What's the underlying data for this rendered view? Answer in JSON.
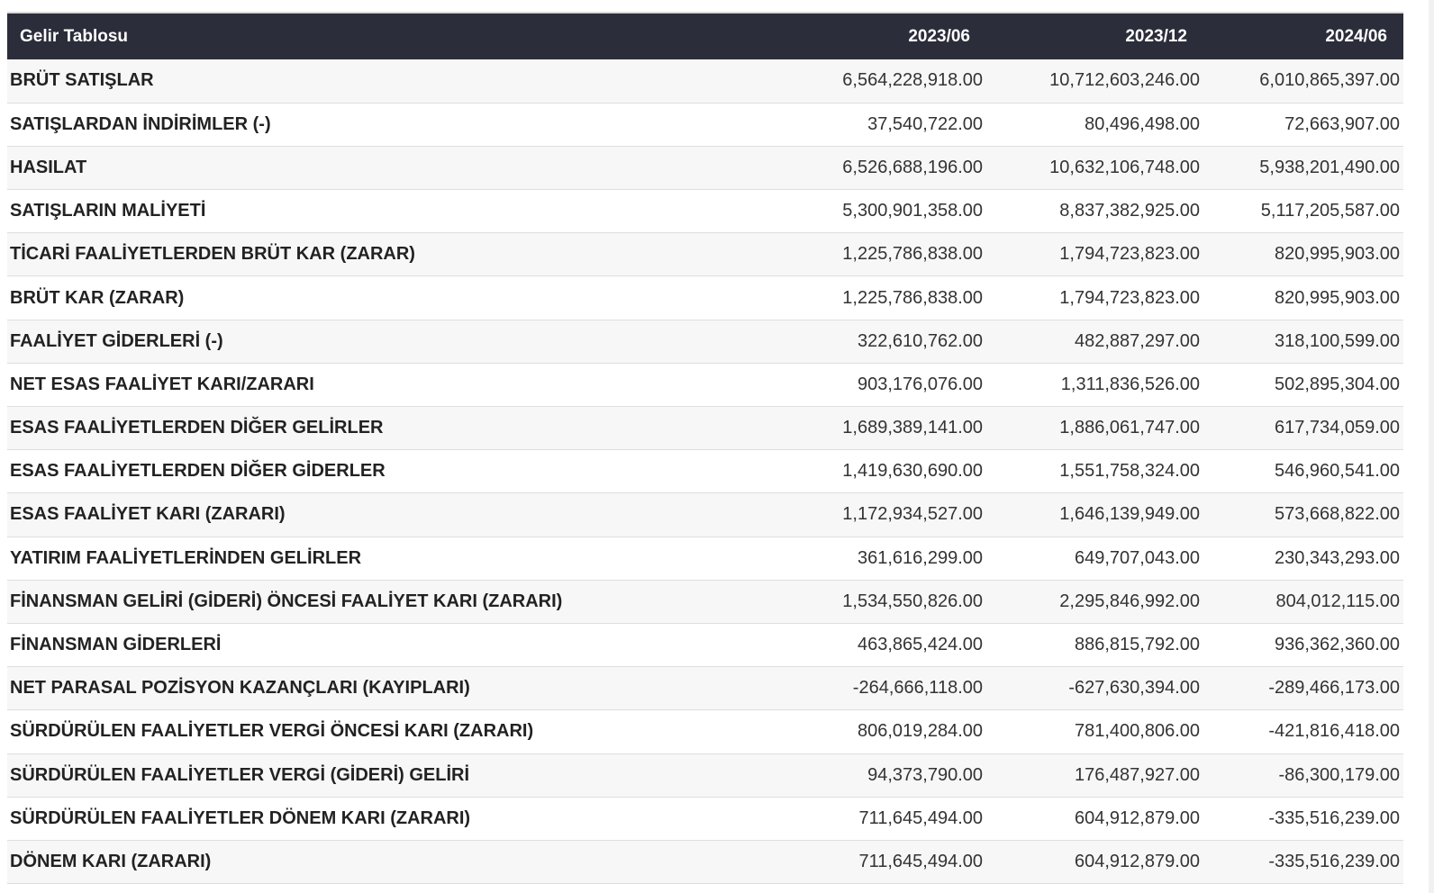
{
  "table": {
    "headers": {
      "title": "Gelir Tablosu",
      "periods": [
        "2023/06",
        "2023/12",
        "2024/06"
      ]
    },
    "rows": [
      {
        "label": "BRÜT SATIŞLAR",
        "values": [
          "6,564,228,918.00",
          "10,712,603,246.00",
          "6,010,865,397.00"
        ]
      },
      {
        "label": "SATIŞLARDAN İNDİRİMLER (-)",
        "values": [
          "37,540,722.00",
          "80,496,498.00",
          "72,663,907.00"
        ]
      },
      {
        "label": "HASILAT",
        "values": [
          "6,526,688,196.00",
          "10,632,106,748.00",
          "5,938,201,490.00"
        ]
      },
      {
        "label": "SATIŞLARIN MALİYETİ",
        "values": [
          "5,300,901,358.00",
          "8,837,382,925.00",
          "5,117,205,587.00"
        ]
      },
      {
        "label": "TİCARİ FAALİYETLERDEN BRÜT KAR (ZARAR)",
        "values": [
          "1,225,786,838.00",
          "1,794,723,823.00",
          "820,995,903.00"
        ]
      },
      {
        "label": "BRÜT KAR (ZARAR)",
        "values": [
          "1,225,786,838.00",
          "1,794,723,823.00",
          "820,995,903.00"
        ]
      },
      {
        "label": "FAALİYET GİDERLERİ (-)",
        "values": [
          "322,610,762.00",
          "482,887,297.00",
          "318,100,599.00"
        ]
      },
      {
        "label": "NET ESAS FAALİYET KARI/ZARARI",
        "values": [
          "903,176,076.00",
          "1,311,836,526.00",
          "502,895,304.00"
        ]
      },
      {
        "label": "ESAS FAALİYETLERDEN DİĞER GELİRLER",
        "values": [
          "1,689,389,141.00",
          "1,886,061,747.00",
          "617,734,059.00"
        ]
      },
      {
        "label": "ESAS FAALİYETLERDEN DİĞER GİDERLER",
        "values": [
          "1,419,630,690.00",
          "1,551,758,324.00",
          "546,960,541.00"
        ]
      },
      {
        "label": "ESAS FAALİYET KARI (ZARARI)",
        "values": [
          "1,172,934,527.00",
          "1,646,139,949.00",
          "573,668,822.00"
        ]
      },
      {
        "label": "YATIRIM FAALİYETLERİNDEN GELİRLER",
        "values": [
          "361,616,299.00",
          "649,707,043.00",
          "230,343,293.00"
        ]
      },
      {
        "label": "FİNANSMAN GELİRİ (GİDERİ) ÖNCESİ FAALİYET KARI (ZARARI)",
        "values": [
          "1,534,550,826.00",
          "2,295,846,992.00",
          "804,012,115.00"
        ]
      },
      {
        "label": "FİNANSMAN GİDERLERİ",
        "values": [
          "463,865,424.00",
          "886,815,792.00",
          "936,362,360.00"
        ]
      },
      {
        "label": "NET PARASAL POZİSYON KAZANÇLARI (KAYIPLARI)",
        "values": [
          "-264,666,118.00",
          "-627,630,394.00",
          "-289,466,173.00"
        ]
      },
      {
        "label": "SÜRDÜRÜLEN FAALİYETLER VERGİ ÖNCESİ KARI (ZARARI)",
        "values": [
          "806,019,284.00",
          "781,400,806.00",
          "-421,816,418.00"
        ]
      },
      {
        "label": "SÜRDÜRÜLEN FAALİYETLER VERGİ (GİDERİ) GELİRİ",
        "values": [
          "94,373,790.00",
          "176,487,927.00",
          "-86,300,179.00"
        ]
      },
      {
        "label": "SÜRDÜRÜLEN FAALİYETLER DÖNEM KARI (ZARARI)",
        "values": [
          "711,645,494.00",
          "604,912,879.00",
          "-335,516,239.00"
        ]
      },
      {
        "label": "DÖNEM KARI (ZARARI)",
        "values": [
          "711,645,494.00",
          "604,912,879.00",
          "-335,516,239.00"
        ]
      }
    ]
  }
}
